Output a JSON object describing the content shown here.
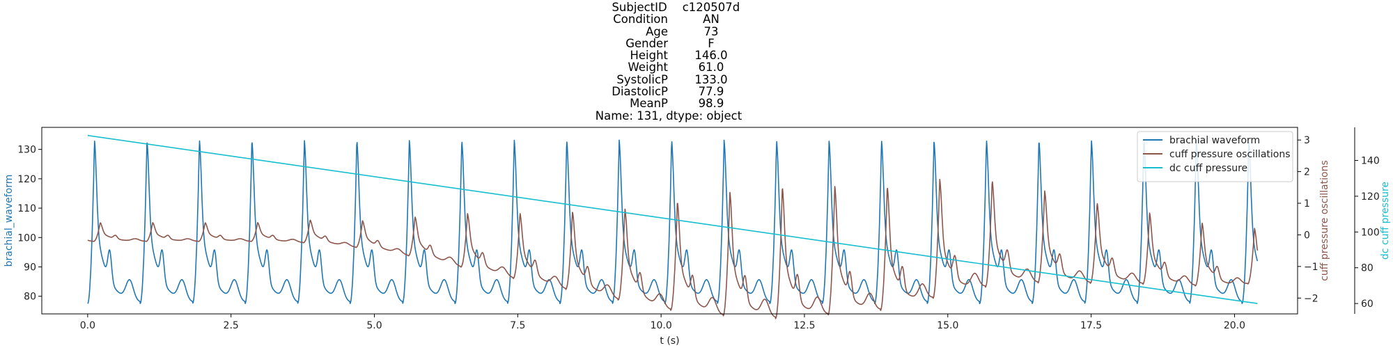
{
  "title": {
    "rows": [
      {
        "key": "SubjectID",
        "value": "c120507d"
      },
      {
        "key": "Condition",
        "value": "AN"
      },
      {
        "key": "Age",
        "value": "73"
      },
      {
        "key": "Gender",
        "value": "F"
      },
      {
        "key": "Height",
        "value": "146.0"
      },
      {
        "key": "Weight",
        "value": "61.0"
      },
      {
        "key": "SystolicP",
        "value": "133.0"
      },
      {
        "key": "DiastolicP",
        "value": "77.9"
      },
      {
        "key": "MeanP",
        "value": "98.9"
      }
    ],
    "footer": "Name: 131, dtype: object"
  },
  "chart_data": {
    "type": "line",
    "xlabel": "t (s)",
    "xlim": [
      -0.8,
      21.1
    ],
    "x_ticks": [
      0.0,
      2.5,
      5.0,
      7.5,
      10.0,
      12.5,
      15.0,
      17.5,
      20.0
    ],
    "x_tick_labels": [
      "0.0",
      "2.5",
      "5.0",
      "7.5",
      "10.0",
      "12.5",
      "15.0",
      "17.5",
      "20.0"
    ],
    "grid": false,
    "legend_position": "top-right",
    "axes": {
      "left": {
        "label": "brachial_waveform",
        "color": "#1f77b4",
        "ylim": [
          74,
          137.5
        ],
        "ticks": [
          80,
          90,
          100,
          110,
          120,
          130
        ],
        "tick_labels": [
          "80",
          "90",
          "100",
          "110",
          "120",
          "130"
        ]
      },
      "right": {
        "label": "cuff pressure oscillations",
        "color": "#8c564b",
        "ylim": [
          -2.5,
          3.4
        ],
        "ticks": [
          -2,
          -1,
          0,
          1,
          2,
          3
        ],
        "tick_labels": [
          "−2",
          "−1",
          "0",
          "1",
          "2",
          "3"
        ]
      },
      "right2": {
        "label": "dc cuff pressure",
        "color": "#17becf",
        "ylim": [
          54.2,
          158.5
        ],
        "ticks": [
          60,
          80,
          100,
          120,
          140
        ],
        "tick_labels": [
          "60",
          "80",
          "100",
          "120",
          "140"
        ]
      }
    },
    "series": [
      {
        "name": "brachial waveform",
        "axis": "left",
        "color": "#1f77b4",
        "kind": "periodic",
        "t_start": 0.0,
        "t_end": 20.4,
        "beat_period": 0.915,
        "first_beat": 0.0,
        "diastolic": 77.5,
        "systolic": 133.2,
        "notch_level": 104,
        "beat_end_level": 82
      },
      {
        "name": "cuff pressure oscillations",
        "axis": "right",
        "color": "#8c564b",
        "kind": "envelope",
        "t_start": 0.0,
        "t_end": 20.4,
        "beat_period": 0.915,
        "first_beat": 0.0,
        "phase_lag": 0.1,
        "baseline": [
          [
            0,
            0.0
          ],
          [
            4,
            0.0
          ],
          [
            6,
            -0.3
          ],
          [
            8,
            -0.8
          ],
          [
            10,
            -1.2
          ],
          [
            12,
            -1.2
          ],
          [
            14,
            -1.0
          ],
          [
            15,
            -0.6
          ],
          [
            16,
            -0.4
          ],
          [
            18,
            -0.7
          ],
          [
            20,
            -1.0
          ],
          [
            20.4,
            -0.9
          ]
        ],
        "amplitude": [
          [
            0,
            0.6
          ],
          [
            3,
            0.6
          ],
          [
            5,
            0.9
          ],
          [
            6.5,
            1.7
          ],
          [
            8,
            2.3
          ],
          [
            9.5,
            3.0
          ],
          [
            11,
            3.9
          ],
          [
            12.2,
            4.2
          ],
          [
            13.5,
            4.0
          ],
          [
            15,
            3.7
          ],
          [
            16.5,
            3.0
          ],
          [
            18,
            2.4
          ],
          [
            19.5,
            2.0
          ],
          [
            20.4,
            1.7
          ]
        ]
      },
      {
        "name": "dc cuff pressure",
        "axis": "right2",
        "color": "#17becf",
        "kind": "line",
        "x": [
          0.0,
          20.4
        ],
        "y": [
          154.0,
          60.0
        ]
      }
    ]
  }
}
